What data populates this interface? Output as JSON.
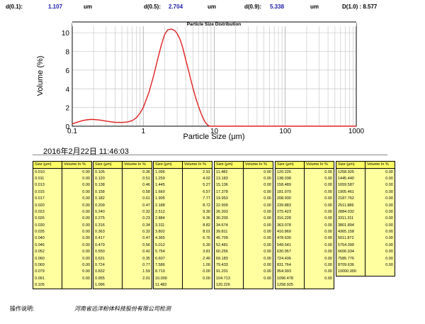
{
  "summary": {
    "d01_label": "d(0.1):",
    "d01_value": "1.107",
    "d01_unit": "um",
    "d05_label": "d(0.5):",
    "d05_value": "2.704",
    "d05_unit": "um",
    "d09_label": "d(0.9):",
    "d09_value": "5.338",
    "d09_unit": "um",
    "d10_text": "D(1.0) : 8.577"
  },
  "chart_data": {
    "type": "line",
    "title": "Particle Size Distribution",
    "xlabel": "Particle Size (μm)",
    "ylabel": "Volume (%)",
    "x_scale": "log",
    "xlim": [
      0.1,
      1000
    ],
    "ylim": [
      0,
      11
    ],
    "x_ticks": [
      "0.1",
      "1",
      "10",
      "100",
      "1000"
    ],
    "y_ticks": [
      "0",
      "2",
      "4",
      "6",
      "8",
      "10"
    ],
    "grid": true,
    "series": [
      {
        "color": "#e02020",
        "x": [
          0.1,
          0.12,
          0.14,
          0.16,
          0.18,
          0.2,
          0.25,
          0.3,
          0.35,
          0.4,
          0.5,
          0.6,
          0.7,
          0.8,
          0.9,
          1.0,
          1.2,
          1.4,
          1.6,
          1.8,
          2.0,
          2.2,
          2.5,
          2.8,
          3.0,
          3.3,
          3.6,
          4.0,
          4.5,
          5.0,
          5.5,
          6.0,
          6.5,
          7.0,
          7.5,
          8.0,
          8.577,
          10,
          50,
          200,
          1000
        ],
        "y": [
          0.25,
          0.45,
          0.6,
          0.68,
          0.72,
          0.72,
          0.65,
          0.55,
          0.47,
          0.42,
          0.4,
          0.45,
          0.6,
          0.9,
          1.4,
          2.0,
          3.6,
          5.4,
          7.2,
          8.7,
          9.8,
          10.3,
          10.4,
          10.2,
          9.9,
          9.3,
          8.4,
          7.0,
          5.5,
          4.1,
          3.0,
          2.1,
          1.4,
          0.8,
          0.4,
          0.15,
          0,
          0,
          0,
          0,
          0
        ]
      }
    ]
  },
  "timestamp": "2016年2月22日 11:46:03",
  "table": {
    "header_size": "Size (μm)",
    "header_vol": "Volume In %",
    "columns": [
      [
        [
          "0.010",
          "0.00"
        ],
        [
          "0.011",
          "0.00"
        ],
        [
          "0.013",
          "0.00"
        ],
        [
          "0.015",
          "0.00"
        ],
        [
          "0.017",
          "0.00"
        ],
        [
          "0.020",
          "0.00"
        ],
        [
          "0.023",
          "0.00"
        ],
        [
          "0.026",
          "0.00"
        ],
        [
          "0.030",
          "0.00"
        ],
        [
          "0.035",
          "0.00"
        ],
        [
          "0.040",
          "0.00"
        ],
        [
          "0.046",
          "0.00"
        ],
        [
          "0.052",
          "0.00"
        ],
        [
          "0.060",
          "0.00"
        ],
        [
          "0.069",
          "0.00"
        ],
        [
          "0.079",
          "0.00"
        ],
        [
          "0.091",
          "0.00"
        ],
        [
          "0.105",
          ""
        ]
      ],
      [
        [
          "0.105",
          "0.36"
        ],
        [
          "0.120",
          "0.51"
        ],
        [
          "0.138",
          "0.46"
        ],
        [
          "0.158",
          "0.58"
        ],
        [
          "0.182",
          "0.61"
        ],
        [
          "0.209",
          "0.47"
        ],
        [
          "0.240",
          "0.32"
        ],
        [
          "0.275",
          "0.23"
        ],
        [
          "0.316",
          "0.34"
        ],
        [
          "0.363",
          "0.32"
        ],
        [
          "0.417",
          "0.47"
        ],
        [
          "0.479",
          "0.56"
        ],
        [
          "0.550",
          "0.42"
        ],
        [
          "0.631",
          "0.35"
        ],
        [
          "0.724",
          "0.77"
        ],
        [
          "0.832",
          "1.59"
        ],
        [
          "0.955",
          "2.01"
        ],
        [
          "1.096",
          ""
        ]
      ],
      [
        [
          "1.096",
          "2.91"
        ],
        [
          "1.259",
          "4.02"
        ],
        [
          "1.445",
          "5.27"
        ],
        [
          "1.660",
          "6.57"
        ],
        [
          "1.905",
          "7.77"
        ],
        [
          "2.188",
          "8.72"
        ],
        [
          "2.512",
          "9.30"
        ],
        [
          "2.884",
          "9.36"
        ],
        [
          "3.311",
          "8.82"
        ],
        [
          "3.802",
          "8.01"
        ],
        [
          "4.365",
          "6.76"
        ],
        [
          "5.012",
          "5.30"
        ],
        [
          "5.754",
          "3.81"
        ],
        [
          "6.607",
          "2.40"
        ],
        [
          "7.586",
          "1.00"
        ],
        [
          "8.710",
          "0.00"
        ],
        [
          "10.000",
          "0.00"
        ],
        [
          "11.482",
          ""
        ]
      ],
      [
        [
          "11.482",
          "0.00"
        ],
        [
          "13.183",
          "0.00"
        ],
        [
          "15.136",
          "0.00"
        ],
        [
          "17.378",
          "0.00"
        ],
        [
          "19.953",
          "0.00"
        ],
        [
          "22.909",
          "0.00"
        ],
        [
          "26.303",
          "0.00"
        ],
        [
          "30.200",
          "0.00"
        ],
        [
          "34.674",
          "0.00"
        ],
        [
          "39.811",
          "0.00"
        ],
        [
          "45.709",
          "0.00"
        ],
        [
          "52.481",
          "0.00"
        ],
        [
          "60.256",
          "0.00"
        ],
        [
          "69.183",
          "0.00"
        ],
        [
          "79.433",
          "0.00"
        ],
        [
          "91.201",
          "0.00"
        ],
        [
          "104.713",
          "0.00"
        ],
        [
          "120.226",
          ""
        ]
      ],
      [
        [
          "120.226",
          "0.00"
        ],
        [
          "138.038",
          "0.00"
        ],
        [
          "158.489",
          "0.00"
        ],
        [
          "181.970",
          "0.00"
        ],
        [
          "208.930",
          "0.00"
        ],
        [
          "239.883",
          "0.00"
        ],
        [
          "275.423",
          "0.00"
        ],
        [
          "316.228",
          "0.00"
        ],
        [
          "363.078",
          "0.00"
        ],
        [
          "416.869",
          "0.00"
        ],
        [
          "478.630",
          "0.00"
        ],
        [
          "549.541",
          "0.00"
        ],
        [
          "630.957",
          "0.00"
        ],
        [
          "724.436",
          "0.00"
        ],
        [
          "831.764",
          "0.00"
        ],
        [
          "954.993",
          "0.00"
        ],
        [
          "1096.478",
          "0.00"
        ],
        [
          "1258.925",
          ""
        ]
      ],
      [
        [
          "1258.925",
          "0.00"
        ],
        [
          "1445.440",
          "0.00"
        ],
        [
          "1659.587",
          "0.00"
        ],
        [
          "1905.461",
          "0.00"
        ],
        [
          "2187.762",
          "0.00"
        ],
        [
          "2511.886",
          "0.00"
        ],
        [
          "2884.032",
          "0.00"
        ],
        [
          "3311.311",
          "0.00"
        ],
        [
          "3801.894",
          "0.00"
        ],
        [
          "4365.158",
          "0.00"
        ],
        [
          "5011.872",
          "0.00"
        ],
        [
          "5754.399",
          "0.00"
        ],
        [
          "6606.934",
          "0.00"
        ],
        [
          "7585.776",
          "0.00"
        ],
        [
          "8709.636",
          "0.00"
        ],
        [
          "10000.000",
          ""
        ]
      ]
    ]
  },
  "footer": {
    "operator_label": "操作说明:",
    "company": "河南省远洋粉体科技股份有限公司检测"
  }
}
